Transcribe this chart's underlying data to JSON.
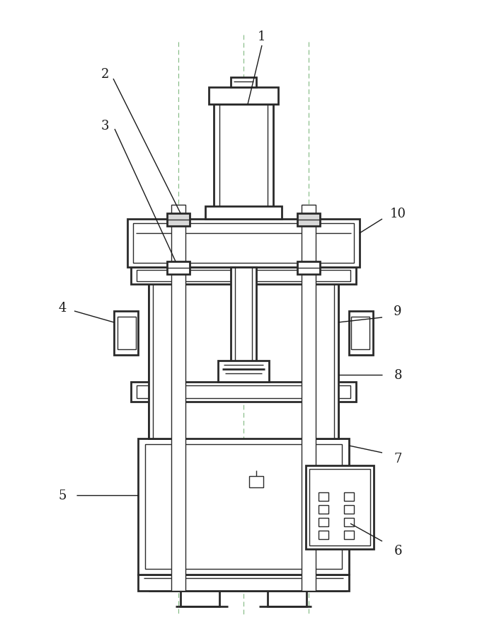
{
  "bg_color": "#ffffff",
  "line_color": "#2a2a2a",
  "center_line_color": "#80b880",
  "figure_width": 6.88,
  "figure_height": 8.79,
  "dpi": 100
}
